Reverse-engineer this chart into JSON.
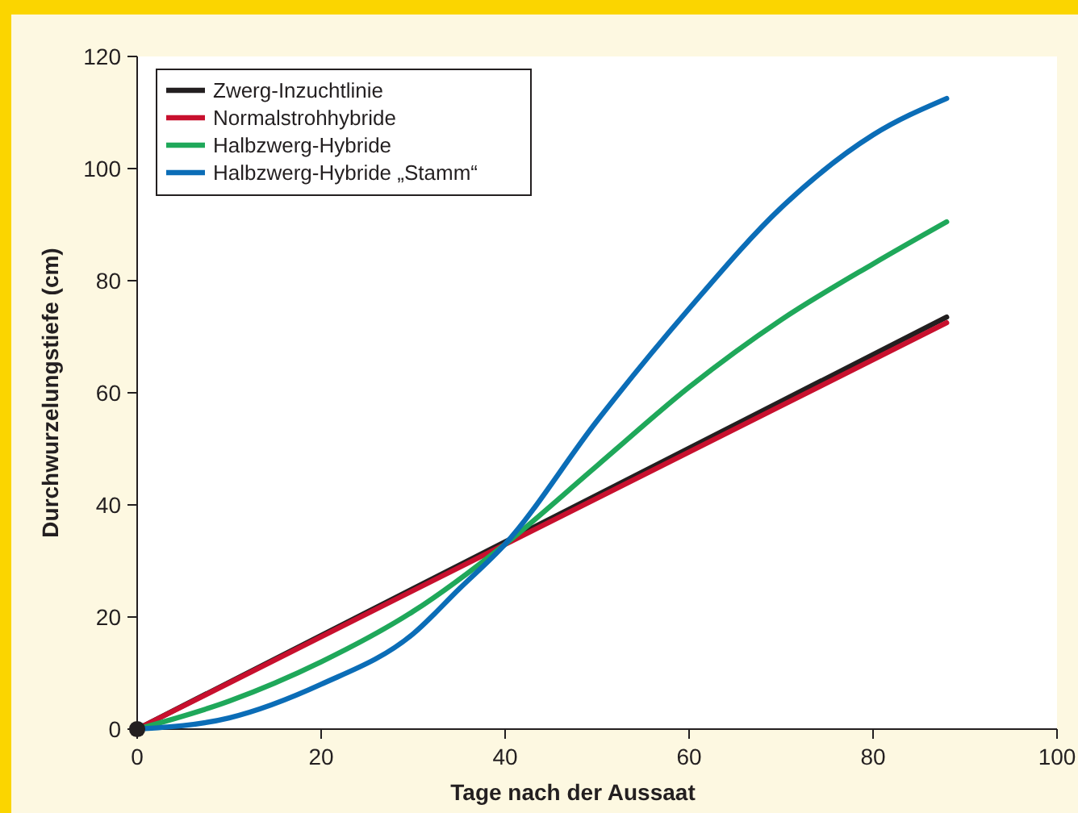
{
  "chart_data": {
    "type": "line",
    "xlabel": "Tage nach der Aussaat",
    "ylabel": "Durchwurzelungstiefe (cm)",
    "xlim": [
      0,
      100
    ],
    "ylim": [
      0,
      120
    ],
    "xticks": [
      0,
      20,
      40,
      60,
      80,
      100
    ],
    "yticks": [
      0,
      20,
      40,
      60,
      80,
      100,
      120
    ],
    "grid": false,
    "legend": "top left",
    "marker": "none",
    "line_style": "solid",
    "series": [
      {
        "name": "Zwerg-Inzuchtlinie",
        "color": "#231f20",
        "x": [
          0,
          88
        ],
        "values": [
          0,
          73.5
        ]
      },
      {
        "name": "Normalstrohhybride",
        "color": "#c8102e",
        "x": [
          0,
          88
        ],
        "values": [
          0,
          72.5
        ]
      },
      {
        "name": "Halbzwerg-Hybride",
        "color": "#1fa85a",
        "x": [
          0,
          10,
          20,
          30,
          40,
          50,
          60,
          70,
          80,
          88
        ],
        "values": [
          0,
          5,
          12,
          21,
          33,
          47,
          61,
          73,
          83,
          90.5
        ]
      },
      {
        "name": "Halbzwerg-Hybride „Stamm“",
        "color": "#0b6db7",
        "x": [
          0,
          10,
          20,
          30,
          35,
          40,
          50,
          60,
          70,
          80,
          88
        ],
        "values": [
          0,
          2,
          8,
          17,
          25,
          33,
          55,
          75,
          93,
          106,
          112.5
        ]
      },
      {
        "type": "scatter",
        "marker": "circle",
        "color": "#231f20",
        "x": [
          0
        ],
        "values": [
          0
        ]
      }
    ]
  }
}
